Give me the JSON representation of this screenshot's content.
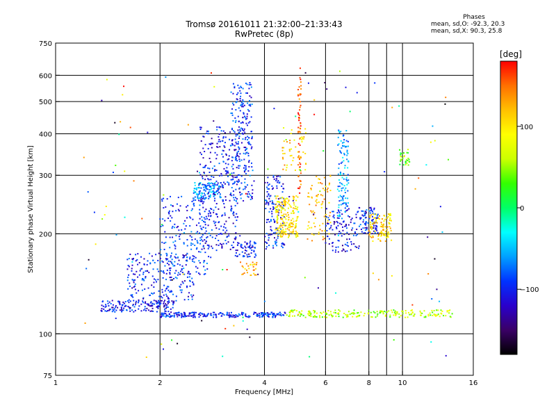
{
  "header": {
    "title_line1": "Tromsø 20161011 21:32:00–21:33:43",
    "title_line2": "RwPretec (8p)"
  },
  "phases": {
    "heading": "Phases",
    "line_o": "mean, sd,O: -92.3, 20.3",
    "line_x": "mean, sd,X:  90.3, 25.8"
  },
  "colorbar": {
    "unit": "[deg]",
    "ticks": [
      {
        "label": "100",
        "value": 100
      },
      {
        "label": "0",
        "value": 0
      },
      {
        "label": "−100",
        "value": -100
      }
    ],
    "range": [
      -180,
      180
    ],
    "stops": [
      "#000000",
      "#3a0066",
      "#2a00cc",
      "#0033ff",
      "#00a0ff",
      "#00ffff",
      "#00ff66",
      "#33ff00",
      "#ccff00",
      "#ffff00",
      "#ffc000",
      "#ff7000",
      "#ff0000"
    ]
  },
  "chart_data": {
    "type": "scatter",
    "title": "Tromsø 20161011 21:32:00–21:33:43",
    "subtitle": "RwPretec (8p)",
    "xlabel": "Frequency [MHz]",
    "ylabel": "Stationary phase Virtual Height [km]",
    "xscale": "log",
    "yscale": "log",
    "xlim": [
      1,
      16
    ],
    "ylim": [
      75,
      750
    ],
    "grid": true,
    "x_ticks": [
      {
        "label": "1",
        "value": 1
      },
      {
        "label": "2",
        "value": 2
      },
      {
        "label": "4",
        "value": 4
      },
      {
        "label": "6",
        "value": 6
      },
      {
        "label": "8",
        "value": 8
      },
      {
        "label": "10",
        "value": 10
      },
      {
        "label": "16",
        "value": 16
      }
    ],
    "x_grid": [
      2,
      4,
      6,
      8,
      9,
      10
    ],
    "y_ticks": [
      {
        "label": "750",
        "value": 750
      },
      {
        "label": "600",
        "value": 600
      },
      {
        "label": "500",
        "value": 500
      },
      {
        "label": "400",
        "value": 400
      },
      {
        "label": "300",
        "value": 300
      },
      {
        "label": "200",
        "value": 200
      },
      {
        "label": "100",
        "value": 100
      },
      {
        "label": "75",
        "value": 75
      }
    ],
    "y_grid": [
      100,
      200,
      300,
      400,
      500,
      600
    ],
    "clusters": [
      {
        "f": [
          1.35,
          2.2
        ],
        "h": [
          116,
          126
        ],
        "phase": -105,
        "n": 160
      },
      {
        "f": [
          2.0,
          4.6
        ],
        "h": [
          112,
          116
        ],
        "phase": -95,
        "n": 230
      },
      {
        "f": [
          4.6,
          14.0
        ],
        "h": [
          112,
          118
        ],
        "phase": 60,
        "n": 210
      },
      {
        "f": [
          1.6,
          2.5
        ],
        "h": [
          125,
          175
        ],
        "phase": -100,
        "n": 220
      },
      {
        "f": [
          2.0,
          2.8
        ],
        "h": [
          150,
          260
        ],
        "phase": -90,
        "n": 200
      },
      {
        "f": [
          2.5,
          3.0
        ],
        "h": [
          255,
          285
        ],
        "phase": -60,
        "n": 110
      },
      {
        "f": [
          2.6,
          3.4
        ],
        "h": [
          175,
          420
        ],
        "phase": -105,
        "n": 300
      },
      {
        "f": [
          3.2,
          3.7
        ],
        "h": [
          250,
          570
        ],
        "phase": -95,
        "n": 240
      },
      {
        "f": [
          3.3,
          3.8
        ],
        "h": [
          170,
          190
        ],
        "phase": -110,
        "n": 60
      },
      {
        "f": [
          3.4,
          3.8
        ],
        "h": [
          150,
          165
        ],
        "phase": 120,
        "n": 30
      },
      {
        "f": [
          4.0,
          4.6
        ],
        "h": [
          180,
          300
        ],
        "phase": -100,
        "n": 140
      },
      {
        "f": [
          4.3,
          5.0
        ],
        "h": [
          195,
          260
        ],
        "phase": 100,
        "n": 200
      },
      {
        "f": [
          4.5,
          5.3
        ],
        "h": [
          310,
          420
        ],
        "phase": 110,
        "n": 50
      },
      {
        "f": [
          5.0,
          5.1
        ],
        "h": [
          250,
          640
        ],
        "phase": 160,
        "n": 60
      },
      {
        "f": [
          5.3,
          6.2
        ],
        "h": [
          190,
          300
        ],
        "phase": 120,
        "n": 80
      },
      {
        "f": [
          6.5,
          7.0
        ],
        "h": [
          220,
          420
        ],
        "phase": -60,
        "n": 110
      },
      {
        "f": [
          6.0,
          7.5
        ],
        "h": [
          175,
          240
        ],
        "phase": -105,
        "n": 110
      },
      {
        "f": [
          7.5,
          8.5
        ],
        "h": [
          200,
          240
        ],
        "phase": -100,
        "n": 90
      },
      {
        "f": [
          8.0,
          9.3
        ],
        "h": [
          190,
          230
        ],
        "phase": 110,
        "n": 100
      },
      {
        "f": [
          9.8,
          10.5
        ],
        "h": [
          320,
          360
        ],
        "phase": 40,
        "n": 30
      },
      {
        "f": [
          1.2,
          15.0
        ],
        "h": [
          85,
          620
        ],
        "phase": 0,
        "n": 120
      }
    ]
  }
}
